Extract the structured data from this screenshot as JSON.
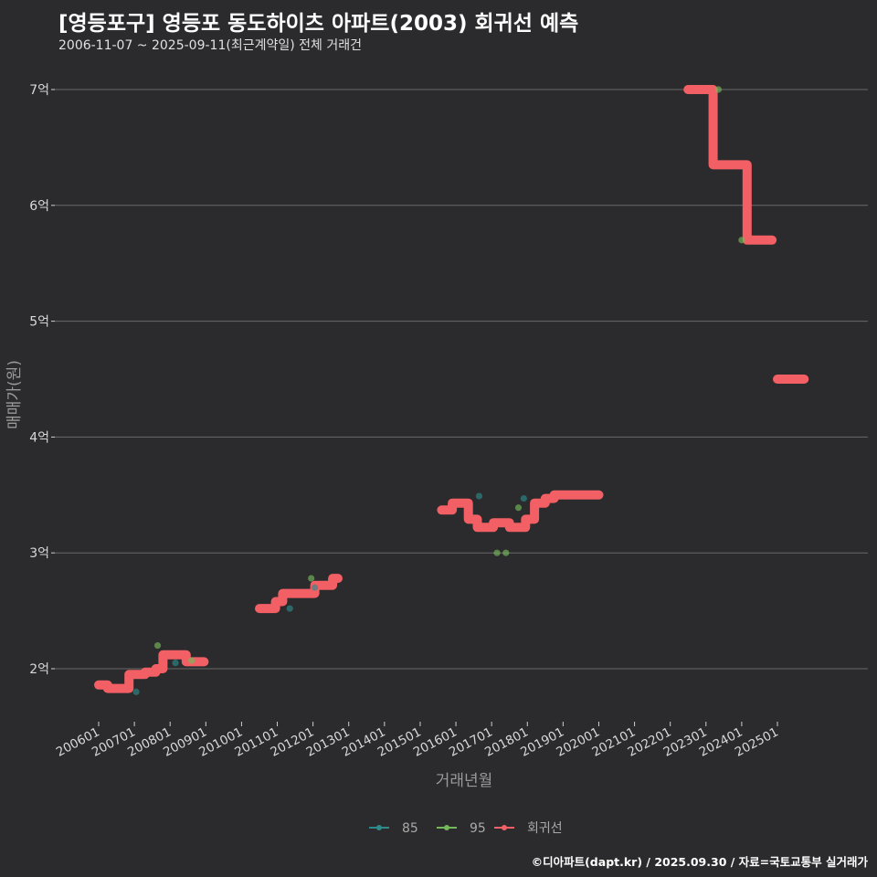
{
  "header": {
    "title": "[영등포구] 영등포 동도하이츠 아파트(2003) 회귀선 예측",
    "subtitle": "2006-11-07 ~ 2025-09-11(최근계약일) 전체 거래건"
  },
  "footer": {
    "credit": "©디아파트(dapt.kr) / 2025.09.30 / 자료=국토교통부 실거래가"
  },
  "colors": {
    "s85": "#2e8a8a",
    "s95": "#74b85a",
    "regression": "#f26065",
    "grid": "#6a6a6a",
    "background": "#2b2a2c"
  },
  "chart_data": {
    "type": "scatter",
    "title": "[영등포구] 영등포 동도하이츠 아파트(2003) 회귀선 예측",
    "subtitle": "2006-11-07 ~ 2025-09-11(최근계약일) 전체 거래건",
    "xlabel": "거래년월",
    "ylabel": "매매가(원)",
    "x_unit": "year",
    "xlim": [
      2005.6,
      2028.0
    ],
    "ylim": [
      1.55,
      7.45
    ],
    "grid": true,
    "legend_position": "bottom",
    "x_ticks": [
      {
        "v": 2006,
        "label": "200601"
      },
      {
        "v": 2007,
        "label": "200701"
      },
      {
        "v": 2008,
        "label": "200801"
      },
      {
        "v": 2009,
        "label": "200901"
      },
      {
        "v": 2010,
        "label": "201001"
      },
      {
        "v": 2011,
        "label": "201101"
      },
      {
        "v": 2012,
        "label": "201201"
      },
      {
        "v": 2013,
        "label": "201301"
      },
      {
        "v": 2014,
        "label": "201401"
      },
      {
        "v": 2015,
        "label": "201501"
      },
      {
        "v": 2016,
        "label": "201601"
      },
      {
        "v": 2017,
        "label": "201701"
      },
      {
        "v": 2018,
        "label": "201801"
      },
      {
        "v": 2019,
        "label": "201901"
      },
      {
        "v": 2020,
        "label": "202001"
      },
      {
        "v": 2021,
        "label": "202101"
      },
      {
        "v": 2022,
        "label": "202201"
      },
      {
        "v": 2023,
        "label": "202301"
      },
      {
        "v": 2024,
        "label": "202401"
      },
      {
        "v": 2025,
        "label": "202501"
      }
    ],
    "y_ticks": [
      {
        "v": 2,
        "label": "2억"
      },
      {
        "v": 3,
        "label": "3억"
      },
      {
        "v": 4,
        "label": "4억"
      },
      {
        "v": 5,
        "label": "5억"
      },
      {
        "v": 6,
        "label": "6억"
      },
      {
        "v": 7,
        "label": "7억"
      }
    ],
    "series": [
      {
        "name": "85",
        "color": "#2e8a8a",
        "points": [
          [
            2007.05,
            1.8
          ],
          [
            2008.15,
            2.05
          ],
          [
            2011.35,
            2.52
          ],
          [
            2016.65,
            3.49
          ],
          [
            2017.9,
            3.47
          ],
          [
            2012.05,
            2.7
          ]
        ]
      },
      {
        "name": "95",
        "color": "#74b85a",
        "points": [
          [
            2007.65,
            2.2
          ],
          [
            2011.95,
            2.78
          ],
          [
            2017.15,
            3.0
          ],
          [
            2017.4,
            3.0
          ],
          [
            2017.75,
            3.39
          ],
          [
            2023.35,
            7.0
          ],
          [
            2024.0,
            5.7
          ],
          [
            2008.6,
            2.07
          ]
        ]
      },
      {
        "name": "회귀선",
        "color": "#f26065",
        "segments": [
          [
            [
              2006.0,
              1.86
            ],
            [
              2006.25,
              1.86
            ],
            [
              2006.25,
              1.83
            ],
            [
              2006.85,
              1.83
            ],
            [
              2006.85,
              1.95
            ],
            [
              2007.3,
              1.95
            ],
            [
              2007.3,
              1.97
            ],
            [
              2007.6,
              1.97
            ],
            [
              2007.6,
              2.0
            ],
            [
              2007.8,
              2.0
            ],
            [
              2007.8,
              2.12
            ],
            [
              2008.45,
              2.12
            ],
            [
              2008.45,
              2.06
            ],
            [
              2008.95,
              2.06
            ]
          ],
          [
            [
              2010.5,
              2.52
            ],
            [
              2010.95,
              2.52
            ],
            [
              2010.95,
              2.58
            ],
            [
              2011.15,
              2.58
            ],
            [
              2011.15,
              2.65
            ],
            [
              2012.05,
              2.65
            ],
            [
              2012.05,
              2.72
            ],
            [
              2012.55,
              2.72
            ],
            [
              2012.55,
              2.78
            ],
            [
              2012.7,
              2.78
            ]
          ],
          [
            [
              2015.6,
              3.37
            ],
            [
              2015.9,
              3.37
            ],
            [
              2015.9,
              3.43
            ],
            [
              2016.35,
              3.43
            ],
            [
              2016.35,
              3.29
            ],
            [
              2016.6,
              3.29
            ],
            [
              2016.6,
              3.22
            ],
            [
              2017.05,
              3.22
            ],
            [
              2017.05,
              3.26
            ],
            [
              2017.5,
              3.26
            ],
            [
              2017.5,
              3.22
            ],
            [
              2017.95,
              3.22
            ],
            [
              2017.95,
              3.29
            ],
            [
              2018.2,
              3.29
            ],
            [
              2018.2,
              3.43
            ],
            [
              2018.5,
              3.43
            ],
            [
              2018.5,
              3.47
            ],
            [
              2018.75,
              3.47
            ],
            [
              2018.75,
              3.5
            ],
            [
              2020.0,
              3.5
            ]
          ],
          [
            [
              2022.5,
              7.0
            ],
            [
              2023.2,
              7.0
            ],
            [
              2023.2,
              6.35
            ],
            [
              2024.15,
              6.35
            ],
            [
              2024.15,
              5.7
            ],
            [
              2024.85,
              5.7
            ]
          ],
          [
            [
              2025.0,
              4.5
            ],
            [
              2025.75,
              4.5
            ]
          ]
        ]
      }
    ]
  }
}
